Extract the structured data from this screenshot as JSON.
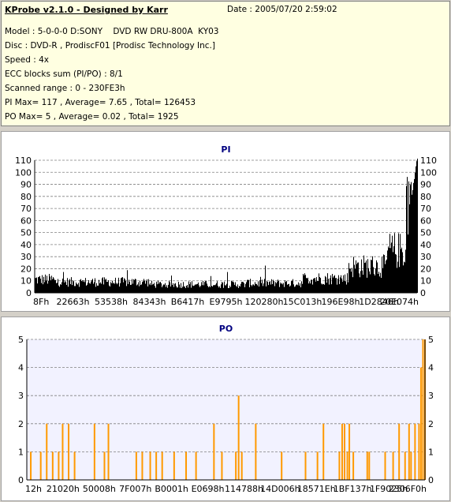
{
  "header": {
    "title": "KProbe v2.1.0 - Designed by Karr",
    "date": "Date : 2005/07/20 2:59:02",
    "lines": [
      "Model : 5-0-0-0 D:SONY    DVD RW DRU-800A  KY03",
      "Disc : DVD-R , ProdiscF01 [Prodisc Technology Inc.]",
      "Speed : 4x",
      "ECC blocks sum (PI/PO) : 8/1",
      "Scanned range : 0 - 230FE3h",
      "PI Max= 117 , Average= 7.65 , Total= 126453",
      "PO Max= 5 , Average= 0.02 , Total= 1925"
    ]
  },
  "colors": {
    "panel_bg": "#ffffe1",
    "window_bg": "#d4d0c8",
    "pi_bar": "#000000",
    "po_bar": "#ff9900",
    "po_plot_bg": "#f2f2ff",
    "title_blue": "#000080"
  },
  "chart_data": [
    {
      "type": "bar",
      "title": "PI",
      "ylim": [
        0,
        110
      ],
      "yticks": [
        0,
        10,
        20,
        30,
        40,
        50,
        60,
        70,
        80,
        90,
        100,
        110
      ],
      "xtick_labels": [
        "8Fh",
        "22663h",
        "53538h",
        "84343h",
        "B6417h",
        "E9795h",
        "120280h",
        "15C013h",
        "196E98h",
        "1D2846h",
        "20E074h"
      ],
      "grid": true,
      "series_profile": [
        {
          "x_from": 0.0,
          "x_to": 0.05,
          "mean": 11
        },
        {
          "x_from": 0.05,
          "x_to": 0.3,
          "mean": 9
        },
        {
          "x_from": 0.3,
          "x_to": 0.55,
          "mean": 7
        },
        {
          "x_from": 0.55,
          "x_to": 0.7,
          "mean": 8
        },
        {
          "x_from": 0.7,
          "x_to": 0.82,
          "mean": 12
        },
        {
          "x_from": 0.82,
          "x_to": 0.92,
          "mean": 22
        },
        {
          "x_from": 0.92,
          "x_to": 0.97,
          "mean": 35
        },
        {
          "x_from": 0.97,
          "x_to": 1.0,
          "mean": 80
        }
      ],
      "peak": 117
    },
    {
      "type": "bar",
      "title": "PO",
      "ylim": [
        0,
        5
      ],
      "yticks": [
        0,
        1,
        2,
        3,
        4,
        5
      ],
      "xtick_labels": [
        "12h",
        "21020h",
        "50008h",
        "7F007h",
        "B0001h",
        "E0698h",
        "114788h",
        "14D006h",
        "18571Eh",
        "1BF137h",
        "1F9025h",
        "2306F0h"
      ],
      "grid": true,
      "spikes": [
        {
          "x": 0.01,
          "v": 1
        },
        {
          "x": 0.035,
          "v": 1
        },
        {
          "x": 0.05,
          "v": 2
        },
        {
          "x": 0.065,
          "v": 1
        },
        {
          "x": 0.08,
          "v": 1
        },
        {
          "x": 0.09,
          "v": 2
        },
        {
          "x": 0.105,
          "v": 2
        },
        {
          "x": 0.12,
          "v": 1
        },
        {
          "x": 0.17,
          "v": 2
        },
        {
          "x": 0.195,
          "v": 1
        },
        {
          "x": 0.205,
          "v": 2
        },
        {
          "x": 0.275,
          "v": 1
        },
        {
          "x": 0.29,
          "v": 1
        },
        {
          "x": 0.31,
          "v": 1
        },
        {
          "x": 0.325,
          "v": 1
        },
        {
          "x": 0.34,
          "v": 1
        },
        {
          "x": 0.37,
          "v": 1
        },
        {
          "x": 0.4,
          "v": 1
        },
        {
          "x": 0.425,
          "v": 1
        },
        {
          "x": 0.47,
          "v": 2
        },
        {
          "x": 0.49,
          "v": 1
        },
        {
          "x": 0.525,
          "v": 1
        },
        {
          "x": 0.532,
          "v": 3
        },
        {
          "x": 0.54,
          "v": 1
        },
        {
          "x": 0.575,
          "v": 2
        },
        {
          "x": 0.64,
          "v": 1
        },
        {
          "x": 0.7,
          "v": 1
        },
        {
          "x": 0.73,
          "v": 1
        },
        {
          "x": 0.745,
          "v": 2
        },
        {
          "x": 0.785,
          "v": 1
        },
        {
          "x": 0.792,
          "v": 2
        },
        {
          "x": 0.798,
          "v": 2
        },
        {
          "x": 0.805,
          "v": 1
        },
        {
          "x": 0.81,
          "v": 2
        },
        {
          "x": 0.82,
          "v": 1
        },
        {
          "x": 0.855,
          "v": 1
        },
        {
          "x": 0.86,
          "v": 1
        },
        {
          "x": 0.9,
          "v": 1
        },
        {
          "x": 0.92,
          "v": 1
        },
        {
          "x": 0.935,
          "v": 2
        },
        {
          "x": 0.95,
          "v": 1
        },
        {
          "x": 0.96,
          "v": 2
        },
        {
          "x": 0.965,
          "v": 1
        },
        {
          "x": 0.975,
          "v": 2
        },
        {
          "x": 0.985,
          "v": 2
        },
        {
          "x": 0.99,
          "v": 4
        },
        {
          "x": 0.995,
          "v": 5
        },
        {
          "x": 1.0,
          "v": 5
        }
      ]
    }
  ]
}
